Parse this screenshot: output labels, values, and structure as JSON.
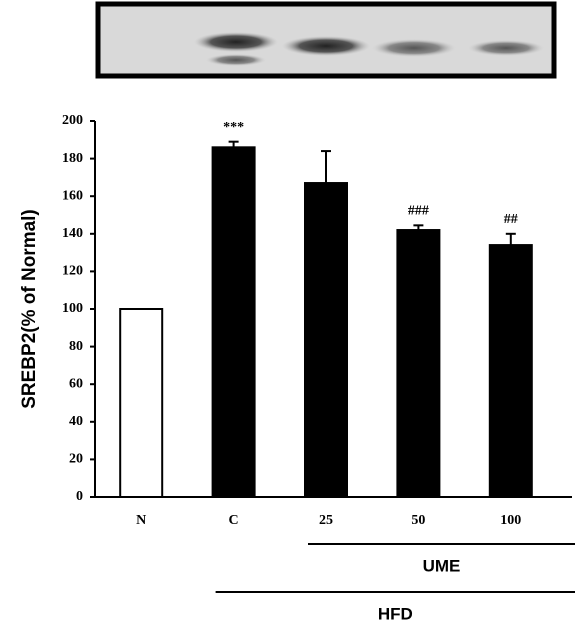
{
  "chart_data": {
    "type": "bar",
    "y_label": "SREBP2(% of Normal)",
    "categories": [
      "N",
      "C",
      "25",
      "50",
      "100"
    ],
    "values": [
      100,
      186,
      167,
      142,
      134
    ],
    "errors": [
      0,
      3,
      17,
      2.5,
      6
    ],
    "colors": [
      "#ffffff",
      "#000000",
      "#000000",
      "#000000",
      "#000000"
    ],
    "annotations": [
      null,
      "***",
      null,
      "###",
      "##"
    ],
    "groups": [
      {
        "label": "UME",
        "from": "25",
        "to": "100"
      },
      {
        "label": "HFD",
        "from": "C",
        "to": "100"
      }
    ],
    "ylim": [
      0,
      200
    ],
    "yticks": [
      0,
      20,
      40,
      60,
      80,
      100,
      120,
      140,
      160,
      180,
      200
    ]
  }
}
